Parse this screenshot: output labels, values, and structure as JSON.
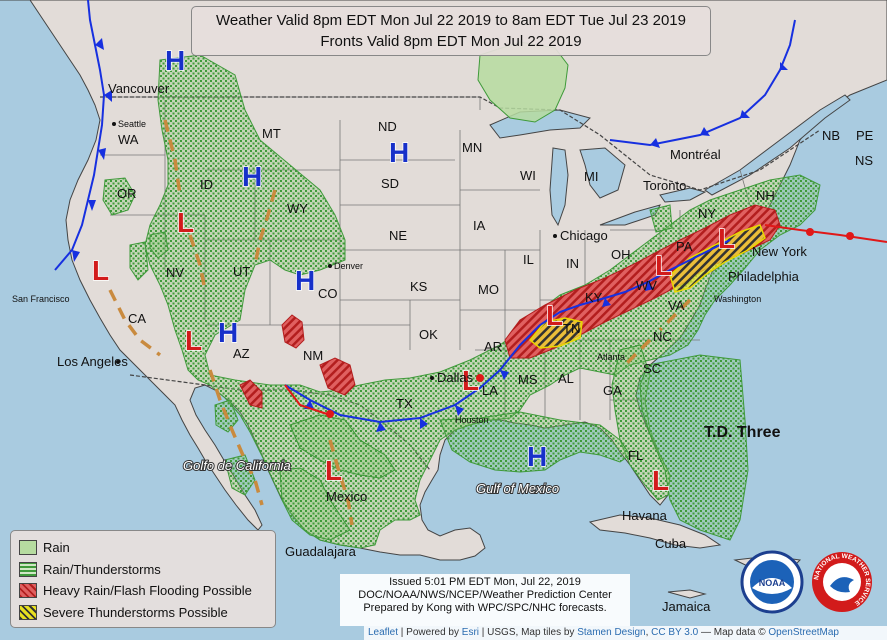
{
  "header": {
    "line1": "Weather Valid 8pm EDT Mon Jul 22 2019 to 8am EDT Tue Jul 23 2019",
    "line2": "Fronts Valid 8pm EDT Mon Jul 22 2019"
  },
  "legend": {
    "items": [
      {
        "label": "Rain",
        "color": "#b6dca0"
      },
      {
        "label": "Rain/Thunderstorms",
        "color": "#9ccc8a"
      },
      {
        "label": "Heavy Rain/Flash Flooding Possible",
        "color": "#d64040"
      },
      {
        "label": "Severe Thunderstorms Possible",
        "color": "#e8e020"
      }
    ]
  },
  "issued": {
    "line1": "Issued 5:01 PM EDT Mon, Jul 22, 2019",
    "line2": "DOC/NOAA/NWS/NCEP/Weather Prediction Center",
    "line3": "Prepared by Kong with WPC/SPC/NHC forecasts."
  },
  "attribution": {
    "leaflet": "Leaflet",
    "powered": " | Powered by ",
    "esri": "Esri",
    "rest": " | USGS, Map tiles by ",
    "stamen": "Stamen Design",
    "comma": ", ",
    "ccby": "CC BY 3.0",
    "mapdata": " — Map data © ",
    "osm": "OpenStreetMap"
  },
  "logos": {
    "noaa": "NOAA",
    "nws": "NATIONAL WEATHER SERVICE"
  },
  "states": [
    {
      "label": "WA"
    },
    {
      "label": "OR"
    },
    {
      "label": "ID"
    },
    {
      "label": "MT"
    },
    {
      "label": "WY"
    },
    {
      "label": "NV"
    },
    {
      "label": "UT"
    },
    {
      "label": "CA"
    },
    {
      "label": "AZ"
    },
    {
      "label": "CO"
    },
    {
      "label": "NM"
    },
    {
      "label": "ND"
    },
    {
      "label": "SD"
    },
    {
      "label": "NE"
    },
    {
      "label": "KS"
    },
    {
      "label": "OK"
    },
    {
      "label": "TX"
    },
    {
      "label": "MN"
    },
    {
      "label": "IA"
    },
    {
      "label": "MO"
    },
    {
      "label": "AR"
    },
    {
      "label": "LA"
    },
    {
      "label": "WI"
    },
    {
      "label": "IL"
    },
    {
      "label": "MS"
    },
    {
      "label": "MI"
    },
    {
      "label": "IN"
    },
    {
      "label": "OH"
    },
    {
      "label": "KY"
    },
    {
      "label": "TN"
    },
    {
      "label": "AL"
    },
    {
      "label": "GA"
    },
    {
      "label": "FL"
    },
    {
      "label": "SC"
    },
    {
      "label": "NC"
    },
    {
      "label": "VA"
    },
    {
      "label": "WV"
    },
    {
      "label": "PA"
    },
    {
      "label": "NY"
    },
    {
      "label": "NH"
    },
    {
      "label": "NB"
    },
    {
      "label": "NS"
    },
    {
      "label": "PE"
    }
  ],
  "cities": [
    {
      "label": "Vancouver"
    },
    {
      "label": "Seattle"
    },
    {
      "label": "San Francisco"
    },
    {
      "label": "Los Angeles"
    },
    {
      "label": "Denver"
    },
    {
      "label": "Dallas"
    },
    {
      "label": "Houston"
    },
    {
      "label": "Atlanta"
    },
    {
      "label": "Chicago"
    },
    {
      "label": "Toronto"
    },
    {
      "label": "Montréal"
    },
    {
      "label": "New York"
    },
    {
      "label": "Philadelphia"
    },
    {
      "label": "Washington"
    },
    {
      "label": "Havana"
    },
    {
      "label": "Guadalajara"
    },
    {
      "label": "Mexico"
    },
    {
      "label": "Jamaica"
    },
    {
      "label": "Cuba"
    }
  ],
  "water_labels": [
    {
      "label": "Golfo de California"
    },
    {
      "label": "Gulf of Mexico"
    }
  ],
  "storm_label": "T.D. Three",
  "pressure_centers": {
    "high": "H",
    "low": "L"
  }
}
